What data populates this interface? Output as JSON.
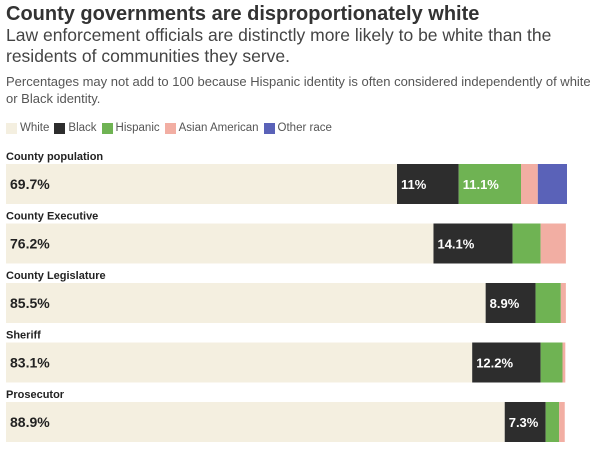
{
  "title": "County governments are disproportionately white",
  "subtitle": "Law enforcement officials are distinctly more likely to be white than the residents of communities they serve.",
  "note": "Percentages may not add to 100 because Hispanic identity is often considered independently of white or Black identity.",
  "colors": {
    "White": "#f4efe0",
    "Black": "#2d2d2d",
    "Hispanic": "#6fb353",
    "Asian American": "#f2aea3",
    "Other race": "#5a62b8",
    "text_dark": "#222222",
    "text_light": "#ffffff"
  },
  "chart_data": {
    "type": "bar",
    "orientation": "horizontal",
    "stacked": true,
    "xlim": [
      0,
      100
    ],
    "legend_placement": "top-left",
    "grid": false,
    "legend": [
      "White",
      "Black",
      "Hispanic",
      "Asian American",
      "Other race"
    ],
    "categories": [
      "County population",
      "County Executive",
      "County Legislature",
      "Sheriff",
      "Prosecutor"
    ],
    "series": [
      {
        "name": "White",
        "values": [
          69.7,
          76.2,
          85.5,
          83.1,
          88.9
        ],
        "labels": [
          "69.7%",
          "76.2%",
          "85.5%",
          "83.1%",
          "88.9%"
        ]
      },
      {
        "name": "Black",
        "values": [
          11.0,
          14.1,
          8.9,
          12.2,
          7.3
        ],
        "labels": [
          "11%",
          "14.1%",
          "8.9%",
          "12.2%",
          "7.3%"
        ]
      },
      {
        "name": "Hispanic",
        "values": [
          11.1,
          5.0,
          4.5,
          3.9,
          2.4
        ],
        "labels": [
          "11.1%",
          "",
          "",
          "",
          ""
        ]
      },
      {
        "name": "Asian American",
        "values": [
          3.0,
          4.5,
          0.9,
          0.5,
          1.0
        ],
        "labels": [
          "",
          "",
          "",
          "",
          ""
        ]
      },
      {
        "name": "Other race",
        "values": [
          5.2,
          0.0,
          0.0,
          0.0,
          0.0
        ],
        "labels": [
          "",
          "",
          "",
          "",
          ""
        ]
      }
    ]
  }
}
